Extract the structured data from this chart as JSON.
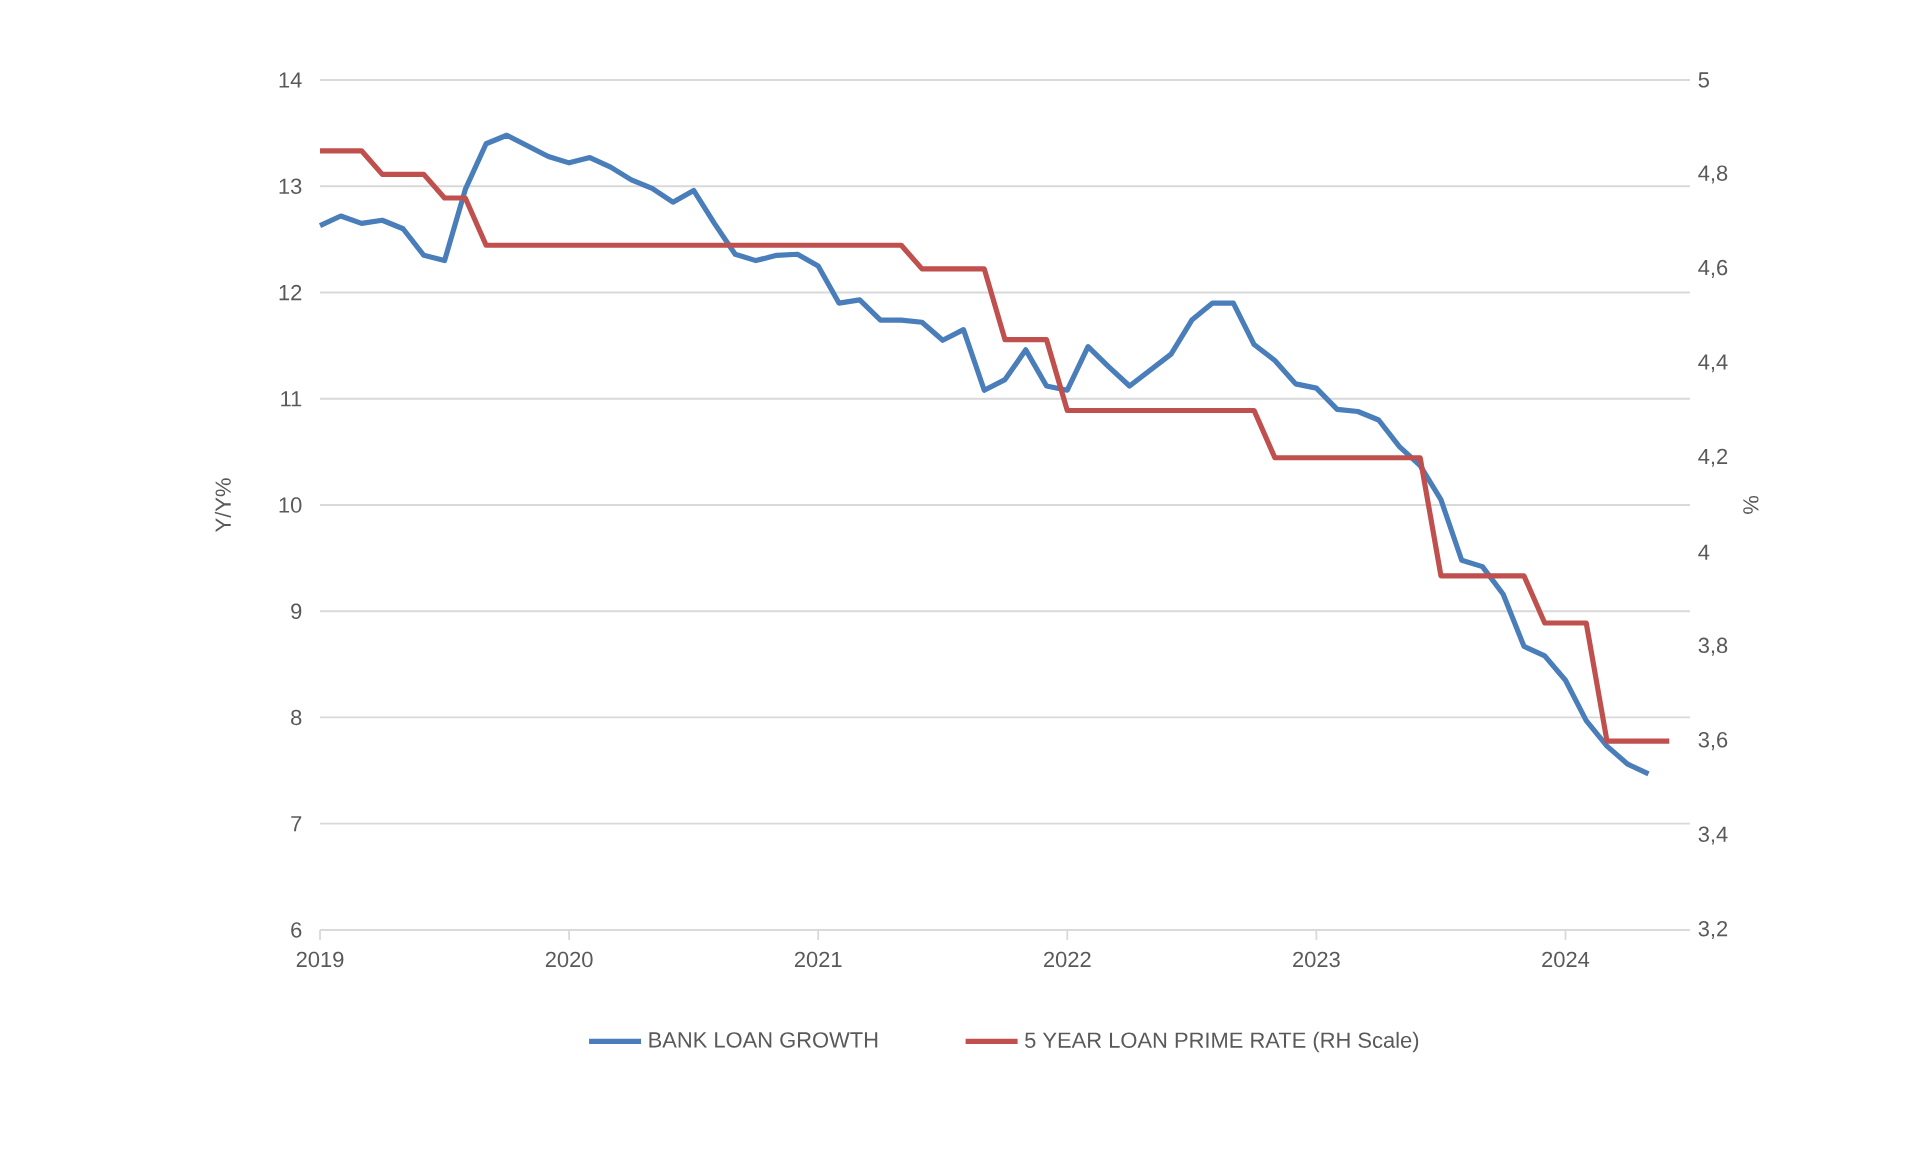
{
  "chart_data": {
    "type": "line",
    "ylabel": "Y/Y%",
    "y2label": "%",
    "xlim": [
      "2019-01",
      "2024-07"
    ],
    "xticks": [
      "2019",
      "2020",
      "2021",
      "2022",
      "2023",
      "2024"
    ],
    "ylim": [
      6,
      14
    ],
    "yticks": [
      6,
      7,
      8,
      9,
      10,
      11,
      12,
      13,
      14
    ],
    "y2lim": [
      3.2,
      5
    ],
    "y2ticks": [
      {
        "value": 3.2,
        "label": "3,2"
      },
      {
        "value": 3.4,
        "label": "3,4"
      },
      {
        "value": 3.6,
        "label": "3,6"
      },
      {
        "value": 3.8,
        "label": "3,8"
      },
      {
        "value": 4,
        "label": "4"
      },
      {
        "value": 4.2,
        "label": "4,2"
      },
      {
        "value": 4.4,
        "label": "4,4"
      },
      {
        "value": 4.6,
        "label": "4,6"
      },
      {
        "value": 4.8,
        "label": "4,8"
      },
      {
        "value": 5,
        "label": "5"
      }
    ],
    "grid": "y",
    "legend": "bottom",
    "series": [
      {
        "name": "BANK LOAN GROWTH",
        "color": "#4a7ebb",
        "x": [
          "2019-01",
          "2019-02",
          "2019-03",
          "2019-04",
          "2019-05",
          "2019-06",
          "2019-07",
          "2019-08",
          "2019-09",
          "2019-10",
          "2019-11",
          "2019-12",
          "2020-01",
          "2020-02",
          "2020-03",
          "2020-04",
          "2020-05",
          "2020-06",
          "2020-07",
          "2020-08",
          "2020-09",
          "2020-10",
          "2020-11",
          "2020-12",
          "2021-01",
          "2021-02",
          "2021-03",
          "2021-04",
          "2021-05",
          "2021-06",
          "2021-07",
          "2021-08",
          "2021-09",
          "2021-10",
          "2021-11",
          "2021-12",
          "2022-01",
          "2022-02",
          "2022-03",
          "2022-04",
          "2022-05",
          "2022-06",
          "2022-07",
          "2022-08",
          "2022-09",
          "2022-10",
          "2022-11",
          "2022-12",
          "2023-01",
          "2023-02",
          "2023-03",
          "2023-04",
          "2023-05",
          "2023-06",
          "2023-07",
          "2023-08",
          "2023-09",
          "2023-10",
          "2023-11",
          "2023-12",
          "2024-01",
          "2024-02",
          "2024-03",
          "2024-04",
          "2024-05"
        ],
        "values": [
          12.63,
          12.72,
          12.65,
          12.68,
          12.6,
          12.35,
          12.3,
          12.97,
          13.4,
          13.48,
          13.38,
          13.28,
          13.22,
          13.27,
          13.18,
          13.06,
          12.98,
          12.85,
          12.96,
          12.65,
          12.36,
          12.3,
          12.35,
          12.36,
          12.25,
          11.9,
          11.93,
          11.74,
          11.74,
          11.72,
          11.55,
          11.65,
          11.08,
          11.18,
          11.46,
          11.12,
          11.08,
          11.49,
          11.3,
          11.12,
          11.27,
          11.42,
          11.74,
          11.9,
          11.9,
          11.51,
          11.36,
          11.14,
          11.1,
          10.9,
          10.88,
          10.8,
          10.55,
          10.37,
          10.05,
          9.48,
          9.42,
          9.16,
          8.67,
          8.58,
          8.35,
          7.97,
          7.73,
          7.56,
          7.47
        ]
      },
      {
        "name": "5 YEAR LOAN PRIME RATE (RH Scale)",
        "color": "#c0504d",
        "axis": "y2",
        "x": [
          "2019-01",
          "2019-02",
          "2019-03",
          "2019-04",
          "2019-05",
          "2019-06",
          "2019-07",
          "2019-08",
          "2019-09",
          "2019-10",
          "2019-11",
          "2019-12",
          "2020-01",
          "2020-02",
          "2020-03",
          "2020-04",
          "2020-05",
          "2020-06",
          "2020-07",
          "2020-08",
          "2020-09",
          "2020-10",
          "2020-11",
          "2020-12",
          "2021-01",
          "2021-02",
          "2021-03",
          "2021-04",
          "2021-05",
          "2021-06",
          "2021-07",
          "2021-08",
          "2021-09",
          "2021-10",
          "2021-11",
          "2021-12",
          "2022-01",
          "2022-02",
          "2022-03",
          "2022-04",
          "2022-05",
          "2022-06",
          "2022-07",
          "2022-08",
          "2022-09",
          "2022-10",
          "2022-11",
          "2022-12",
          "2023-01",
          "2023-02",
          "2023-03",
          "2023-04",
          "2023-05",
          "2023-06",
          "2023-07",
          "2023-08",
          "2023-09",
          "2023-10",
          "2023-11",
          "2023-12",
          "2024-01",
          "2024-02",
          "2024-03",
          "2024-04",
          "2024-05",
          "2024-06"
        ],
        "values": [
          4.85,
          4.85,
          4.85,
          4.8,
          4.8,
          4.8,
          4.75,
          4.75,
          4.65,
          4.65,
          4.65,
          4.65,
          4.65,
          4.65,
          4.65,
          4.65,
          4.65,
          4.65,
          4.65,
          4.65,
          4.65,
          4.65,
          4.65,
          4.65,
          4.65,
          4.65,
          4.65,
          4.65,
          4.65,
          4.6,
          4.6,
          4.6,
          4.6,
          4.45,
          4.45,
          4.45,
          4.3,
          4.3,
          4.3,
          4.3,
          4.3,
          4.3,
          4.3,
          4.3,
          4.3,
          4.3,
          4.2,
          4.2,
          4.2,
          4.2,
          4.2,
          4.2,
          4.2,
          4.2,
          3.95,
          3.95,
          3.95,
          3.95,
          3.95,
          3.85,
          3.85,
          3.85,
          3.6,
          3.6,
          3.6,
          3.6
        ]
      }
    ]
  }
}
